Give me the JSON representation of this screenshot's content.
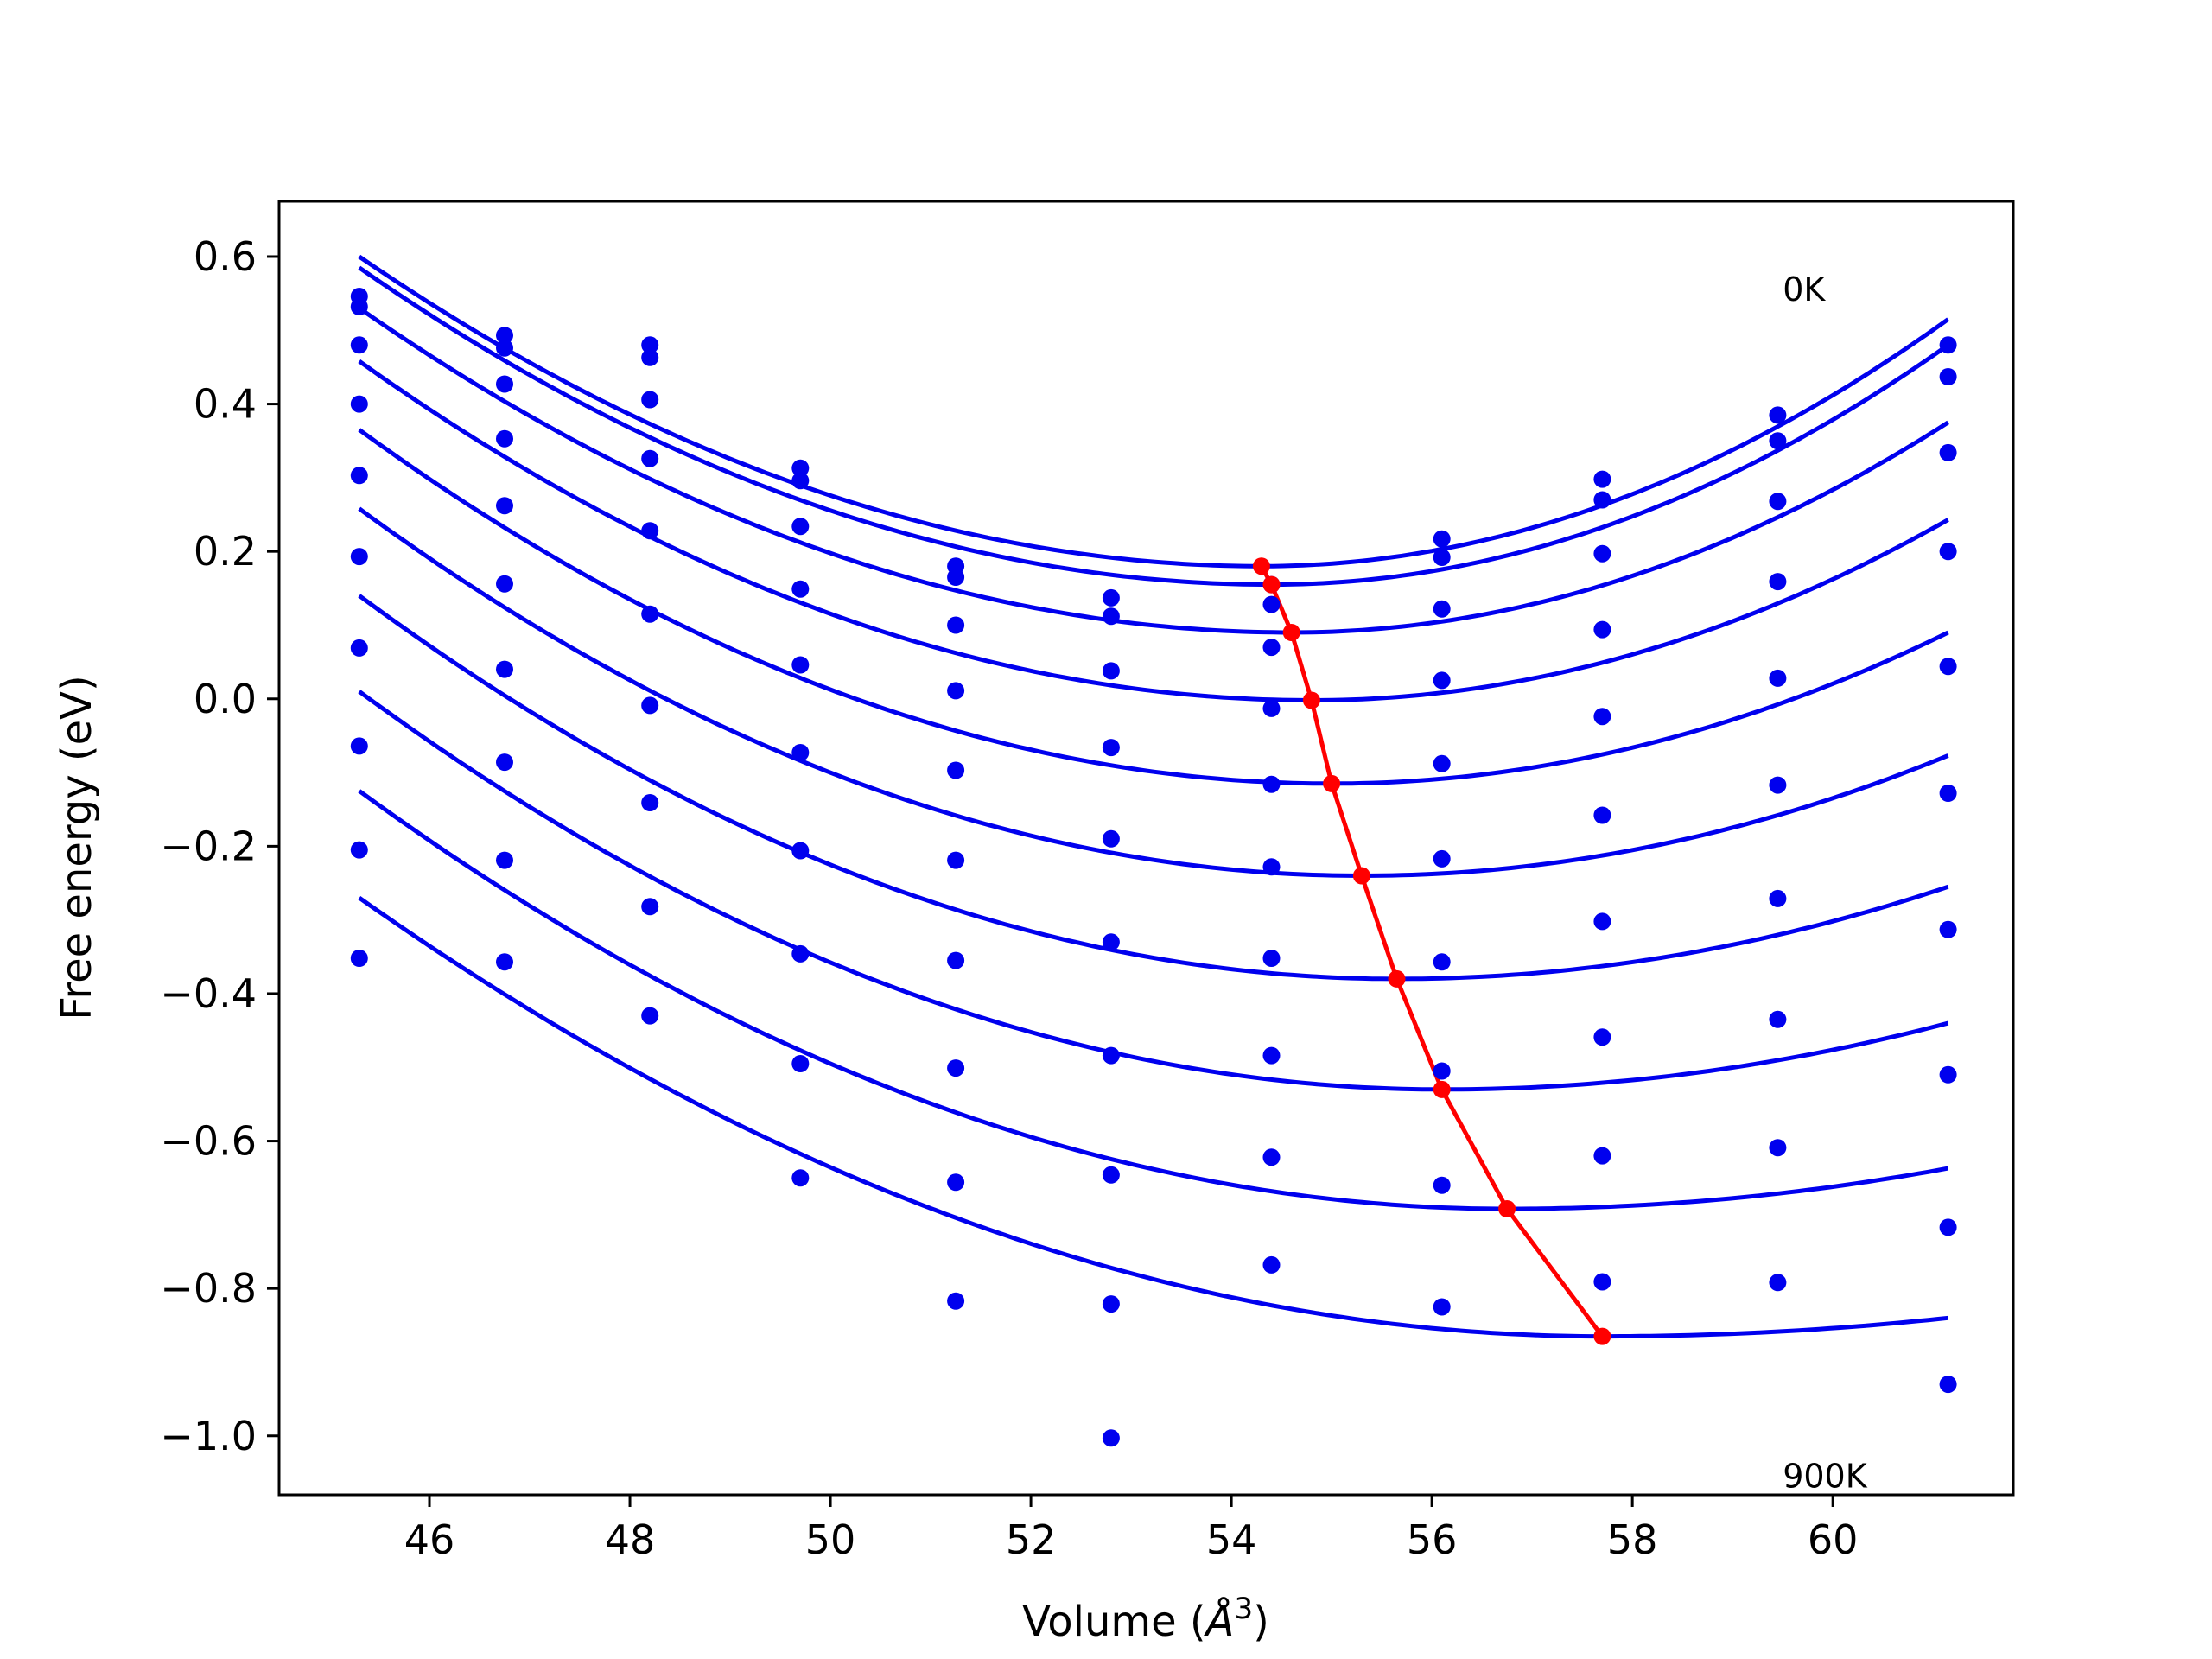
{
  "chart_data": {
    "type": "scatter",
    "xlabel": "Volume (",
    "xlabel_unit_base": "Å",
    "xlabel_unit_exp": "3",
    "xlabel_close": ")",
    "ylabel": "Free energy (eV)",
    "xlim": [
      44.5,
      61.8
    ],
    "ylim": [
      -1.08,
      0.675
    ],
    "xticks": [
      46,
      48,
      50,
      52,
      54,
      56,
      58,
      60
    ],
    "xtick_labels": [
      "46",
      "48",
      "50",
      "52",
      "54",
      "56",
      "58",
      "60"
    ],
    "yticks": [
      0.6,
      0.4,
      0.2,
      0.0,
      -0.2,
      -0.4,
      -0.6,
      -0.8,
      -1.0
    ],
    "ytick_labels": [
      "0.6",
      "0.4",
      "0.2",
      "0.0",
      "−0.2",
      "−0.4",
      "−0.6",
      "−0.8",
      "−1.0"
    ],
    "annotations": [
      {
        "text": "0K",
        "x": 59.5,
        "y": 0.54
      },
      {
        "text": "900K",
        "x": 59.5,
        "y": -1.07
      }
    ],
    "grid": false,
    "colors": {
      "points": "#0000ee",
      "curves": "#0000ee",
      "minimum_line": "#ff0000"
    },
    "x": [
      45.3,
      46.75,
      48.2,
      49.7,
      51.25,
      52.8,
      54.4,
      56.1,
      57.7,
      59.45,
      61.15
    ],
    "point_series": [
      {
        "y": [
          0.546,
          0.493,
          0.48,
          0.313,
          0.18,
          0.137,
          0.155,
          0.217,
          0.298,
          0.385,
          0.48
        ]
      },
      {
        "y": [
          0.532,
          0.476,
          0.463,
          0.296,
          0.165,
          0.112,
          0.128,
          0.192,
          0.27,
          0.35,
          0.437
        ]
      },
      {
        "y": [
          0.48,
          0.427,
          0.406,
          0.234,
          0.1,
          0.038,
          0.07,
          0.122,
          0.197,
          0.268,
          0.334
        ]
      },
      {
        "y": [
          0.4,
          0.353,
          0.326,
          0.149,
          0.011,
          -0.066,
          -0.013,
          0.025,
          0.094,
          0.159,
          0.2
        ]
      },
      {
        "y": [
          0.303,
          0.262,
          0.228,
          0.046,
          -0.097,
          -0.19,
          -0.116,
          -0.088,
          -0.024,
          0.028,
          0.044
        ]
      },
      {
        "y": [
          0.193,
          0.156,
          0.115,
          -0.073,
          -0.219,
          -0.33,
          -0.228,
          -0.217,
          -0.158,
          -0.117,
          -0.128
        ]
      },
      {
        "y": [
          0.069,
          0.04,
          -0.009,
          -0.206,
          -0.355,
          -0.484,
          -0.352,
          -0.357,
          -0.302,
          -0.271,
          -0.313
        ]
      },
      {
        "y": [
          -0.064,
          -0.086,
          -0.141,
          -0.346,
          -0.501,
          -0.646,
          -0.484,
          -0.505,
          -0.459,
          -0.435,
          -0.51
        ]
      },
      {
        "y": [
          -0.205,
          -0.219,
          -0.282,
          -0.495,
          -0.656,
          -0.821,
          -0.622,
          -0.66,
          -0.62,
          -0.609,
          -0.717
        ]
      },
      {
        "y": [
          -0.352,
          -0.357,
          -0.43,
          -0.65,
          -0.817,
          -1.003,
          -0.768,
          -0.825,
          -0.791,
          -0.792,
          -0.93
        ]
      }
    ],
    "fit_curves": [
      {
        "x": [
          45.3,
          54.3,
          61.15
        ],
        "y": [
          0.6,
          0.18,
          0.515
        ]
      },
      {
        "x": [
          45.3,
          54.4,
          61.15
        ],
        "y": [
          0.585,
          0.155,
          0.48
        ]
      },
      {
        "x": [
          45.3,
          54.6,
          61.15
        ],
        "y": [
          0.53,
          0.09,
          0.375
        ]
      },
      {
        "x": [
          45.3,
          54.8,
          61.15
        ],
        "y": [
          0.458,
          -0.002,
          0.243
        ]
      },
      {
        "x": [
          45.3,
          55.0,
          61.15
        ],
        "y": [
          0.365,
          -0.115,
          0.09
        ]
      },
      {
        "x": [
          45.3,
          55.3,
          61.15
        ],
        "y": [
          0.258,
          -0.24,
          -0.077
        ]
      },
      {
        "x": [
          45.3,
          55.65,
          61.15
        ],
        "y": [
          0.14,
          -0.38,
          -0.255
        ]
      },
      {
        "x": [
          45.3,
          56.1,
          61.15
        ],
        "y": [
          0.01,
          -0.53,
          -0.44
        ]
      },
      {
        "x": [
          45.3,
          56.75,
          61.15
        ],
        "y": [
          -0.125,
          -0.692,
          -0.637
        ]
      },
      {
        "x": [
          45.3,
          57.7,
          61.15
        ],
        "y": [
          -0.27,
          -0.865,
          -0.84
        ]
      }
    ],
    "minimum_line": {
      "x": [
        54.3,
        54.4,
        54.6,
        54.8,
        55.0,
        55.3,
        55.65,
        56.1,
        56.75,
        57.7
      ],
      "y": [
        0.18,
        0.155,
        0.09,
        -0.002,
        -0.115,
        -0.24,
        -0.38,
        -0.53,
        -0.692,
        -0.865
      ]
    }
  }
}
